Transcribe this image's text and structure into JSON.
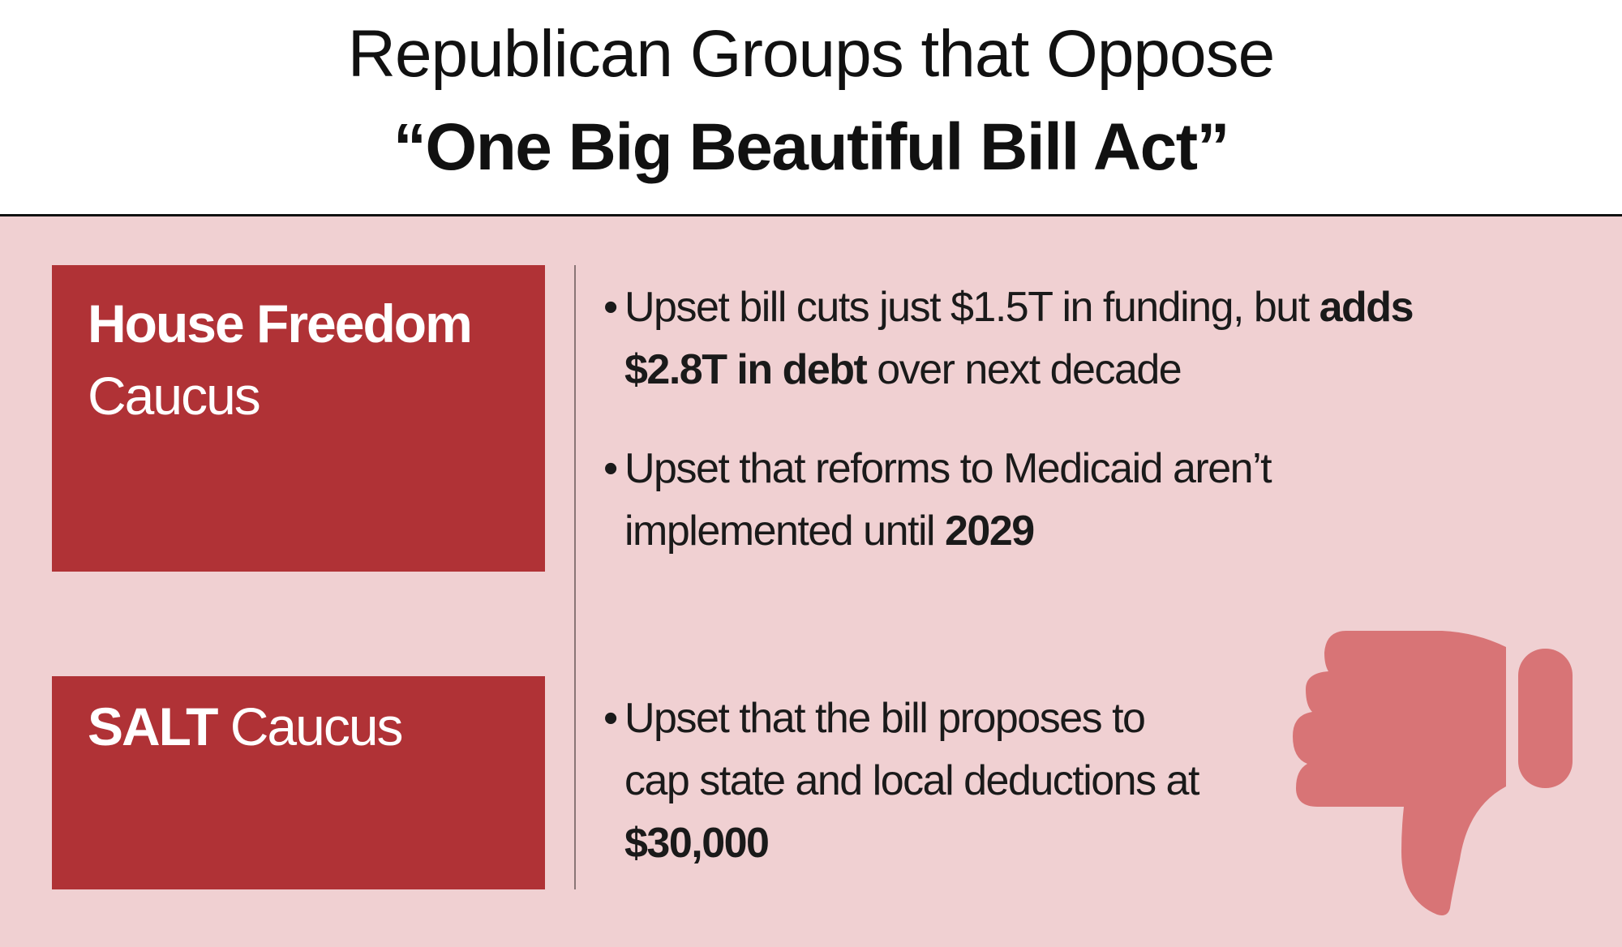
{
  "title": {
    "line1": "Republican Groups that Oppose",
    "line2": "“One Big Beautiful Bill Act”"
  },
  "groups": [
    {
      "name_bold": "House Freedom",
      "name_regular": "Caucus",
      "points": [
        {
          "pre": "Upset bill cuts just $1.5T in funding, but ",
          "bold1": "adds",
          "mid": " ",
          "bold2": "$2.8T in debt",
          "post": " over next decade"
        },
        {
          "pre": "Upset that reforms to Medicaid aren’t implemented until ",
          "bold1": "2029"
        }
      ]
    },
    {
      "name_bold": "SALT",
      "name_regular": " Caucus",
      "points": [
        {
          "pre": "Upset that the bill proposes to cap state and local deductions at ",
          "bold1": "$30,000"
        }
      ]
    }
  ],
  "bullet_char": "•",
  "icon": "thumbs-down-icon",
  "colors": {
    "background": "#f0d0d2",
    "box": "#b03236",
    "icon": "#d87476"
  }
}
